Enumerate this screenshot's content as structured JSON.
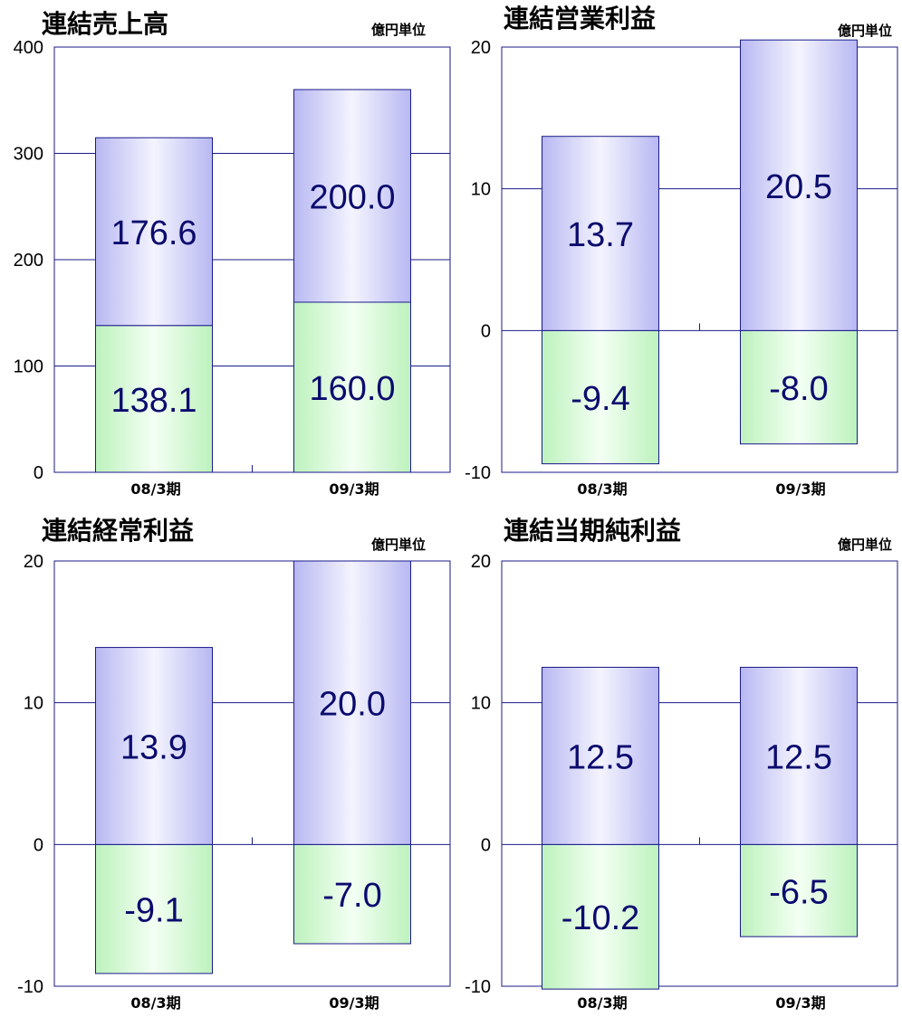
{
  "chart_data": [
    {
      "type": "bar",
      "title": "連結売上高",
      "unit_label": "億円単位",
      "categories": [
        "08/3期",
        "09/3期"
      ],
      "ylim": [
        0,
        400
      ],
      "yticks": [
        "400",
        "300",
        "200",
        "100",
        "0"
      ],
      "grid": true,
      "stacked": true,
      "series": [
        {
          "values": [
            138.1,
            160.0
          ],
          "labels": [
            "138.1",
            "160.0"
          ],
          "color": "#d8f8d8"
        },
        {
          "values": [
            176.6,
            200.0
          ],
          "labels": [
            "176.6",
            "200.0"
          ],
          "color": "#d8d8fa"
        }
      ]
    },
    {
      "type": "bar",
      "title": "連結営業利益",
      "unit_label": "億円単位",
      "categories": [
        "08/3期",
        "09/3期"
      ],
      "ylim": [
        -10,
        20
      ],
      "yticks": [
        "20",
        "10",
        "0",
        "-10"
      ],
      "grid": true,
      "stacked": false,
      "series": [
        {
          "values": [
            -9.4,
            -8.0
          ],
          "labels": [
            "-9.4",
            "-8.0"
          ],
          "color": "#d8f8d8"
        },
        {
          "values": [
            13.7,
            20.5
          ],
          "labels": [
            "13.7",
            "20.5"
          ],
          "color": "#d8d8fa"
        }
      ]
    },
    {
      "type": "bar",
      "title": "連結経常利益",
      "unit_label": "億円単位",
      "categories": [
        "08/3期",
        "09/3期"
      ],
      "ylim": [
        -10,
        20
      ],
      "yticks": [
        "20",
        "10",
        "0",
        "-10"
      ],
      "grid": true,
      "stacked": false,
      "series": [
        {
          "values": [
            -9.1,
            -7.0
          ],
          "labels": [
            "-9.1",
            "-7.0"
          ],
          "color": "#d8f8d8"
        },
        {
          "values": [
            13.9,
            20.0
          ],
          "labels": [
            "13.9",
            "20.0"
          ],
          "color": "#d8d8fa"
        }
      ]
    },
    {
      "type": "bar",
      "title": "連結当期純利益",
      "unit_label": "億円単位",
      "categories": [
        "08/3期",
        "09/3期"
      ],
      "ylim": [
        -10,
        20
      ],
      "yticks": [
        "20",
        "10",
        "0",
        "-10"
      ],
      "grid": true,
      "stacked": false,
      "series": [
        {
          "values": [
            -10.2,
            -6.5
          ],
          "labels": [
            "-10.2",
            "-6.5"
          ],
          "color": "#d8f8d8"
        },
        {
          "values": [
            12.5,
            12.5
          ],
          "labels": [
            "12.5",
            "12.5"
          ],
          "color": "#d8d8fa"
        }
      ]
    }
  ]
}
